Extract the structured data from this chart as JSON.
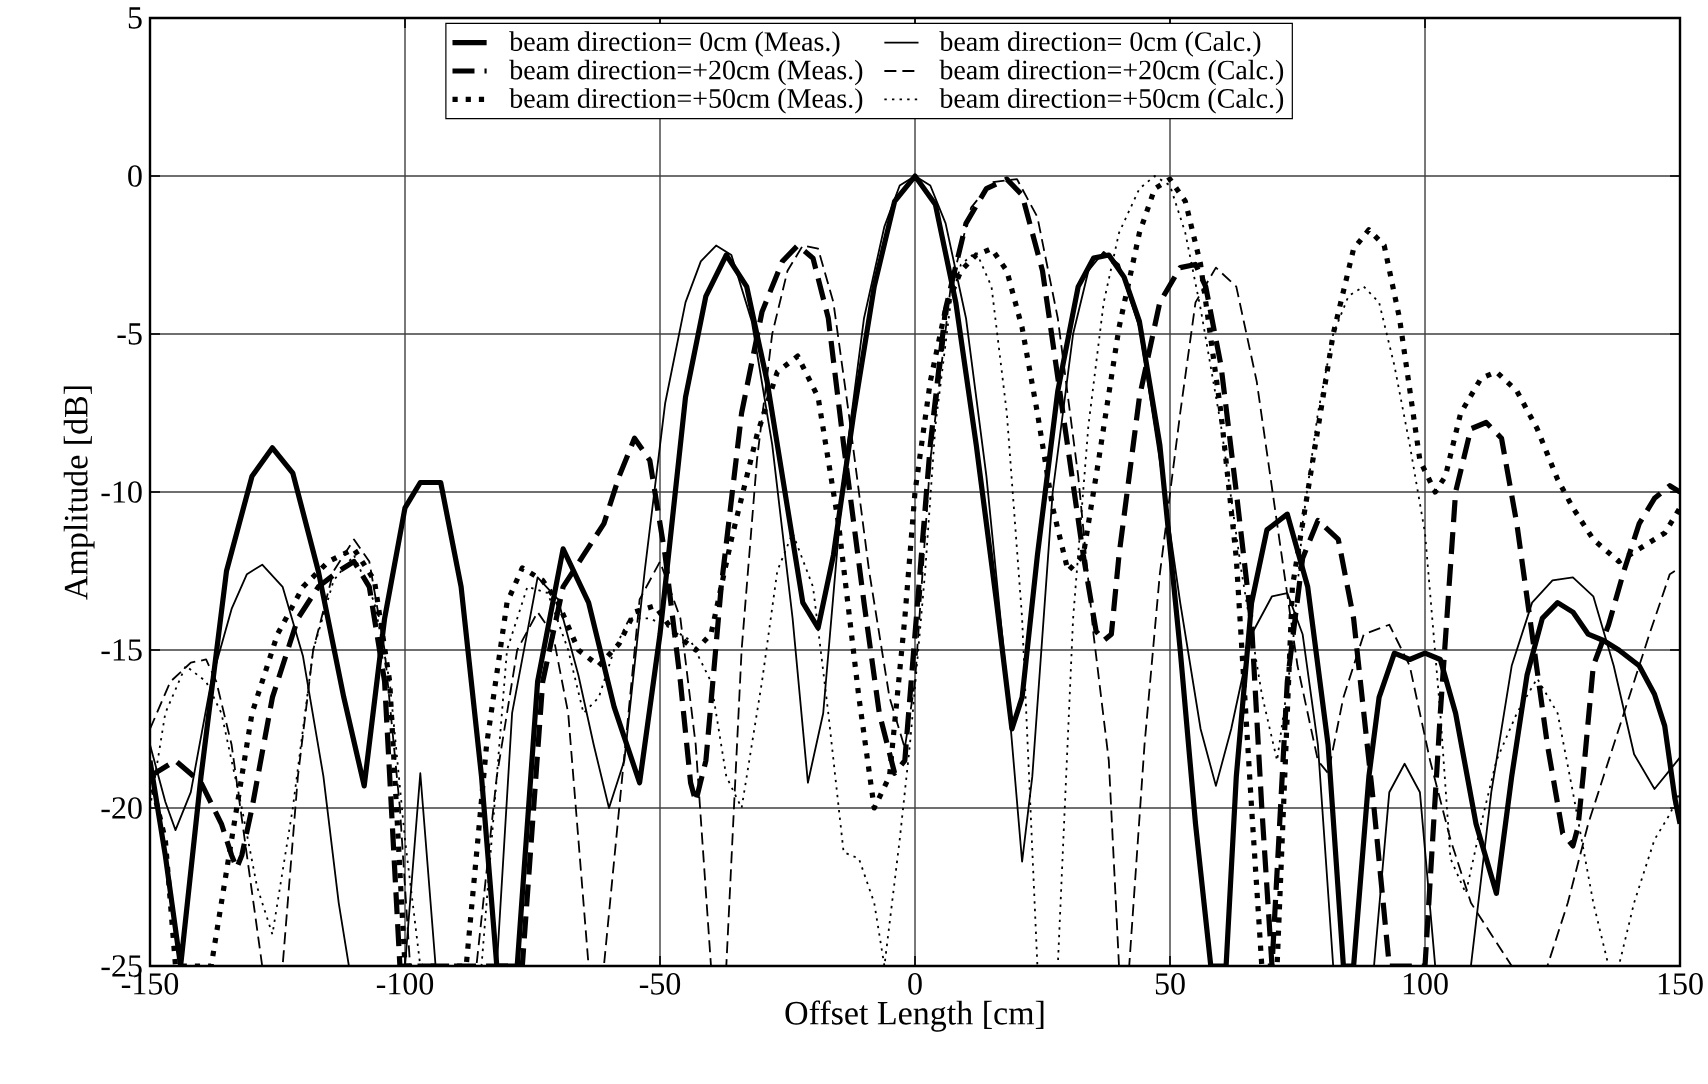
{
  "chart_data": {
    "type": "line",
    "xlabel": "Offset Length [cm]",
    "ylabel": "Amplitude [dB]",
    "xlim": [
      -150,
      150
    ],
    "ylim": [
      -25,
      5
    ],
    "xticks": [
      -150,
      -100,
      -50,
      0,
      50,
      100,
      150
    ],
    "yticks": [
      -25,
      -20,
      -15,
      -10,
      -5,
      0,
      5
    ],
    "grid": true,
    "legend": "top",
    "marker": "none",
    "series": [
      {
        "name": "beam direction=  0cm (Meas.)",
        "color": "#000000",
        "line_style": "solid",
        "x": [
          -150,
          -147,
          -144,
          -140,
          -135,
          -130,
          -126,
          -122,
          -117,
          -112,
          -108,
          -104,
          -100,
          -97,
          -93,
          -89,
          -85,
          -82,
          -78,
          -74,
          -69,
          -64,
          -59,
          -54,
          -50,
          -45,
          -41,
          -37,
          -33,
          -29,
          -25,
          -22,
          -19,
          -16,
          -12,
          -8,
          -4,
          0,
          4,
          8,
          12,
          16,
          19,
          21,
          24,
          28,
          32,
          35,
          38,
          41,
          44,
          48,
          52,
          55,
          58,
          61,
          63,
          66,
          69,
          73,
          77,
          81,
          84,
          86,
          89,
          91,
          94,
          97,
          100,
          103,
          106,
          110,
          114,
          117,
          120,
          123,
          126,
          129,
          132,
          135,
          138,
          142,
          145,
          147,
          149,
          150
        ],
        "values": [
          -18.5,
          -21.5,
          -25,
          -19,
          -12.5,
          -9.5,
          -8.6,
          -9.4,
          -12.5,
          -16.5,
          -19.3,
          -14,
          -10.5,
          -9.7,
          -9.7,
          -13,
          -19,
          -25,
          -25,
          -16,
          -11.8,
          -13.5,
          -16.8,
          -19.2,
          -14.5,
          -7,
          -3.8,
          -2.5,
          -3.5,
          -6.5,
          -10.5,
          -13.5,
          -14.3,
          -12,
          -7.5,
          -3.5,
          -0.8,
          0,
          -0.9,
          -4,
          -8.5,
          -13.5,
          -17.5,
          -16.5,
          -12,
          -6.8,
          -3.5,
          -2.6,
          -2.5,
          -3.2,
          -4.6,
          -8.5,
          -15,
          -20.5,
          -25,
          -25,
          -19,
          -13.5,
          -11.2,
          -10.7,
          -13,
          -18,
          -25,
          -25,
          -19,
          -16.5,
          -15.1,
          -15.3,
          -15.1,
          -15.3,
          -17,
          -20.5,
          -22.7,
          -19,
          -15.8,
          -14,
          -13.5,
          -13.8,
          -14.5,
          -14.7,
          -15,
          -15.5,
          -16.4,
          -17.4,
          -19.7,
          -20.5
        ]
      },
      {
        "name": "beam direction=  0cm (Calc.)",
        "color": "#000000",
        "line_style": "solid",
        "x": [
          -150,
          -147,
          -145,
          -142,
          -138,
          -134,
          -131,
          -128,
          -124,
          -120,
          -116,
          -113,
          -111,
          -108,
          -103,
          -100,
          -97,
          -94,
          -91,
          -88,
          -85,
          -82,
          -79,
          -74,
          -70,
          -66,
          -63,
          -60,
          -57,
          -53,
          -49,
          -45,
          -42,
          -39,
          -36,
          -32,
          -28,
          -24,
          -21,
          -18,
          -14,
          -10,
          -6,
          -3,
          0,
          3,
          6,
          10,
          14,
          18,
          21,
          23,
          27,
          31,
          34,
          37,
          40,
          44,
          48,
          52,
          56,
          59,
          62,
          66,
          70,
          73,
          76,
          79,
          82,
          85,
          90,
          93,
          96,
          99,
          102,
          106,
          109,
          113,
          117,
          121,
          125,
          129,
          133,
          137,
          141,
          145,
          148,
          150
        ],
        "values": [
          -18,
          -19.8,
          -20.7,
          -19.5,
          -16,
          -13.7,
          -12.6,
          -12.3,
          -13,
          -15.2,
          -19,
          -23,
          -25,
          -25,
          -25,
          -25,
          -18.9,
          -25,
          -25,
          -25,
          -25,
          -25,
          -17,
          -12.7,
          -13.4,
          -15.8,
          -18,
          -20,
          -18.5,
          -12.5,
          -7.2,
          -4,
          -2.7,
          -2.2,
          -2.5,
          -4.6,
          -8.5,
          -14,
          -19.2,
          -17,
          -9.5,
          -4.5,
          -1.6,
          -0.3,
          0,
          -0.3,
          -1.5,
          -4.5,
          -9.5,
          -16,
          -21.7,
          -19,
          -10,
          -5,
          -3,
          -2.4,
          -2.8,
          -4.8,
          -9,
          -13.5,
          -17.5,
          -19.3,
          -17.5,
          -14.5,
          -13.3,
          -13.2,
          -14.5,
          -18,
          -25,
          -25,
          -25,
          -19.5,
          -18.6,
          -19.5,
          -25,
          -25,
          -25,
          -19.5,
          -15.5,
          -13.5,
          -12.8,
          -12.7,
          -13.3,
          -15.5,
          -18.3,
          -19.4,
          -18.8,
          -18.4
        ]
      },
      {
        "name": "beam direction=+20cm (Meas.)",
        "color": "#000000",
        "line_style": "dashed",
        "x": [
          -150,
          -145,
          -140,
          -136,
          -134,
          -133,
          -132,
          -130,
          -126,
          -121,
          -117,
          -113,
          -110,
          -107,
          -104,
          -101,
          -98,
          -92,
          -86,
          -80,
          -77,
          -73,
          -69,
          -65,
          -61,
          -58,
          -55,
          -52,
          -49,
          -46,
          -44,
          -43,
          -41,
          -38,
          -34,
          -30,
          -26,
          -23,
          -20,
          -17,
          -14,
          -10,
          -7,
          -4,
          -2,
          0,
          3,
          6,
          10,
          14,
          18,
          21,
          25,
          29,
          33,
          35.5,
          37,
          38.5,
          40,
          44,
          48,
          52,
          55,
          57,
          60,
          63,
          66,
          68,
          70,
          73,
          76,
          79,
          83,
          86,
          90,
          93,
          96,
          100,
          103,
          106,
          109,
          112,
          115,
          118,
          121,
          124,
          127,
          129,
          130,
          131,
          133,
          136,
          139,
          142,
          145,
          148,
          150
        ],
        "values": [
          -19,
          -18.5,
          -19.2,
          -20.5,
          -21.5,
          -21.9,
          -21.5,
          -20,
          -16.5,
          -14,
          -13,
          -12.5,
          -12.2,
          -13,
          -16,
          -25,
          -25,
          -25,
          -25,
          -25,
          -25,
          -16,
          -13,
          -12,
          -11,
          -9.5,
          -8.3,
          -9,
          -12,
          -16,
          -19.2,
          -19.8,
          -18.5,
          -13,
          -7.5,
          -4.3,
          -2.7,
          -2.2,
          -2.6,
          -4.5,
          -8.5,
          -13.5,
          -17,
          -18.9,
          -18.5,
          -14.5,
          -8.5,
          -4.2,
          -1.5,
          -0.4,
          -0.1,
          -0.6,
          -3,
          -7.5,
          -12,
          -14.4,
          -14.7,
          -14.5,
          -12,
          -7,
          -4,
          -2.9,
          -2.8,
          -3.5,
          -6,
          -10,
          -14.2,
          -20,
          -25,
          -16,
          -12.1,
          -10.9,
          -11.5,
          -14,
          -20,
          -25,
          -25,
          -25,
          -17,
          -10,
          -8,
          -7.8,
          -8.3,
          -11,
          -14.5,
          -18,
          -20.8,
          -21.2,
          -20.6,
          -19,
          -15.5,
          -14.2,
          -12.5,
          -11,
          -10.2,
          -9.8,
          -10
        ]
      },
      {
        "name": "beam direction=+20cm (Calc.)",
        "color": "#000000",
        "line_style": "dashed",
        "x": [
          -150,
          -146,
          -142,
          -139,
          -137,
          -134,
          -131,
          -128,
          -126,
          -124,
          -121,
          -118,
          -114,
          -110,
          -107,
          -104,
          -101,
          -99,
          -92,
          -86,
          -82,
          -78,
          -74,
          -71,
          -68,
          -64,
          -61,
          -58,
          -54,
          -50,
          -46,
          -43,
          -40,
          -37,
          -34,
          -31,
          -28,
          -25,
          -22,
          -19,
          -16,
          -13,
          -9,
          -5,
          -2,
          0,
          3,
          7,
          11,
          15,
          20,
          24,
          28,
          32,
          35,
          38,
          40,
          42,
          45,
          48,
          52,
          55,
          59,
          63,
          67,
          71,
          75,
          79,
          81,
          84,
          88,
          93,
          97,
          101,
          105,
          109,
          113,
          117,
          120,
          124,
          128,
          132,
          136,
          140,
          144,
          148,
          150
        ],
        "values": [
          -17.5,
          -16,
          -15.4,
          -15.3,
          -16,
          -18,
          -21.5,
          -25,
          -25,
          -25,
          -19,
          -15,
          -12.5,
          -11.5,
          -12.2,
          -15,
          -20,
          -25,
          -25,
          -25,
          -19,
          -15,
          -13.8,
          -14.5,
          -17,
          -25,
          -25,
          -20,
          -13.4,
          -12.2,
          -14,
          -18,
          -25,
          -25,
          -15,
          -9,
          -5,
          -3,
          -2.2,
          -2.3,
          -4,
          -7.5,
          -12.5,
          -16.5,
          -18.1,
          -16,
          -9,
          -3.5,
          -1,
          -0.2,
          -0.1,
          -1.3,
          -4.5,
          -9.5,
          -14.5,
          -18.5,
          -25,
          -25,
          -18,
          -12.6,
          -7.5,
          -4,
          -2.9,
          -3.5,
          -6.5,
          -11,
          -15.5,
          -18.5,
          -18.9,
          -16.5,
          -14.5,
          -14.2,
          -15.5,
          -18.5,
          -21,
          -23,
          -24,
          -25,
          -25,
          -25,
          -23,
          -20.5,
          -18.5,
          -16.5,
          -14.5,
          -12.6,
          -12.4
        ]
      },
      {
        "name": "beam direction=+50cm (Meas.)",
        "color": "#000000",
        "line_style": "dotted",
        "x": [
          -150,
          -147,
          -145,
          -141,
          -138,
          -134,
          -130,
          -125,
          -120,
          -115,
          -110,
          -106,
          -103,
          -100,
          -94,
          -88,
          -84,
          -80,
          -77,
          -73,
          -70,
          -66,
          -62,
          -58,
          -55,
          -51,
          -47,
          -43,
          -40,
          -36,
          -31,
          -27,
          -23,
          -19,
          -15,
          -11,
          -8,
          -5,
          -2,
          0,
          3,
          6,
          9,
          12,
          15,
          18,
          21,
          24,
          27,
          30,
          33,
          36,
          40,
          44,
          47,
          50,
          53,
          56,
          60,
          63,
          66,
          68,
          71,
          74,
          78,
          82,
          86,
          89,
          92,
          95,
          99,
          102,
          104,
          107,
          111,
          114,
          118,
          122,
          126,
          129,
          133,
          138,
          142,
          147,
          150
        ],
        "values": [
          -19,
          -21,
          -25,
          -25,
          -25,
          -21,
          -17,
          -14.5,
          -13,
          -12.2,
          -11.8,
          -12.8,
          -16,
          -25,
          -25,
          -25,
          -18,
          -13.5,
          -12.4,
          -12.8,
          -13.5,
          -15,
          -15.5,
          -14.8,
          -13.8,
          -13.6,
          -14.5,
          -15,
          -14.5,
          -11.5,
          -8.2,
          -6.2,
          -5.7,
          -7,
          -11,
          -16.5,
          -20,
          -19,
          -14,
          -10,
          -6.5,
          -4.2,
          -3,
          -2.5,
          -2.3,
          -3,
          -4.8,
          -7.5,
          -10.5,
          -12.5,
          -12,
          -9,
          -4.8,
          -1.8,
          -0.4,
          -0.1,
          -0.8,
          -2.8,
          -7.5,
          -12.1,
          -20,
          -25,
          -25,
          -13,
          -9,
          -5,
          -2.3,
          -1.7,
          -2.2,
          -4.5,
          -9,
          -10,
          -9.5,
          -7.5,
          -6.4,
          -6.2,
          -6.8,
          -8,
          -9.6,
          -10.5,
          -11.5,
          -12.2,
          -11.8,
          -11.3,
          -10.5
        ]
      },
      {
        "name": "beam direction=+50cm (Calc.)",
        "color": "#000000",
        "line_style": "dotted",
        "x": [
          -150,
          -147,
          -143,
          -139,
          -136,
          -132,
          -129,
          -126,
          -122,
          -118,
          -114,
          -110,
          -106,
          -103,
          -100,
          -97,
          -90,
          -85,
          -80,
          -76,
          -72,
          -68,
          -65,
          -62,
          -59,
          -56,
          -52,
          -48,
          -44,
          -40,
          -37,
          -34,
          -30,
          -27,
          -24,
          -20,
          -17,
          -14,
          -11,
          -8,
          -6,
          -3,
          -1,
          2,
          4,
          7,
          9,
          12,
          15,
          18,
          21,
          24,
          28,
          31,
          34,
          37,
          40,
          44,
          47,
          50,
          53,
          56,
          60,
          64,
          68,
          71,
          74,
          76,
          79,
          82,
          85,
          88,
          91,
          94,
          97,
          100,
          103,
          105,
          108,
          111,
          114,
          118,
          122,
          126,
          129,
          133,
          136,
          138,
          141,
          145,
          148,
          150
        ],
        "values": [
          -20,
          -17,
          -15.5,
          -16,
          -17,
          -20,
          -22.5,
          -24,
          -20,
          -15,
          -12.8,
          -12,
          -13.5,
          -16,
          -21,
          -25,
          -25,
          -25,
          -15,
          -13,
          -13.2,
          -15,
          -17,
          -16.5,
          -15,
          -14,
          -14,
          -14.3,
          -14.7,
          -16,
          -19,
          -20,
          -16,
          -12.5,
          -11.3,
          -13,
          -17,
          -21.4,
          -21.6,
          -23,
          -25,
          -21,
          -18,
          -12.5,
          -7.9,
          -4,
          -2.8,
          -2.4,
          -3.5,
          -7.5,
          -14,
          -25,
          -25,
          -14,
          -7.9,
          -4,
          -1.8,
          -0.4,
          0,
          -0.3,
          -1.8,
          -4.2,
          -7.9,
          -12.5,
          -16.4,
          -18.5,
          -15,
          -11,
          -7.5,
          -5,
          -3.8,
          -3.5,
          -4,
          -6,
          -8.5,
          -11.3,
          -17,
          -21.6,
          -22.7,
          -20.5,
          -18.5,
          -17,
          -15.9,
          -17,
          -19.5,
          -23,
          -25,
          -25,
          -23,
          -21,
          -20.2,
          -19.5
        ]
      }
    ]
  }
}
